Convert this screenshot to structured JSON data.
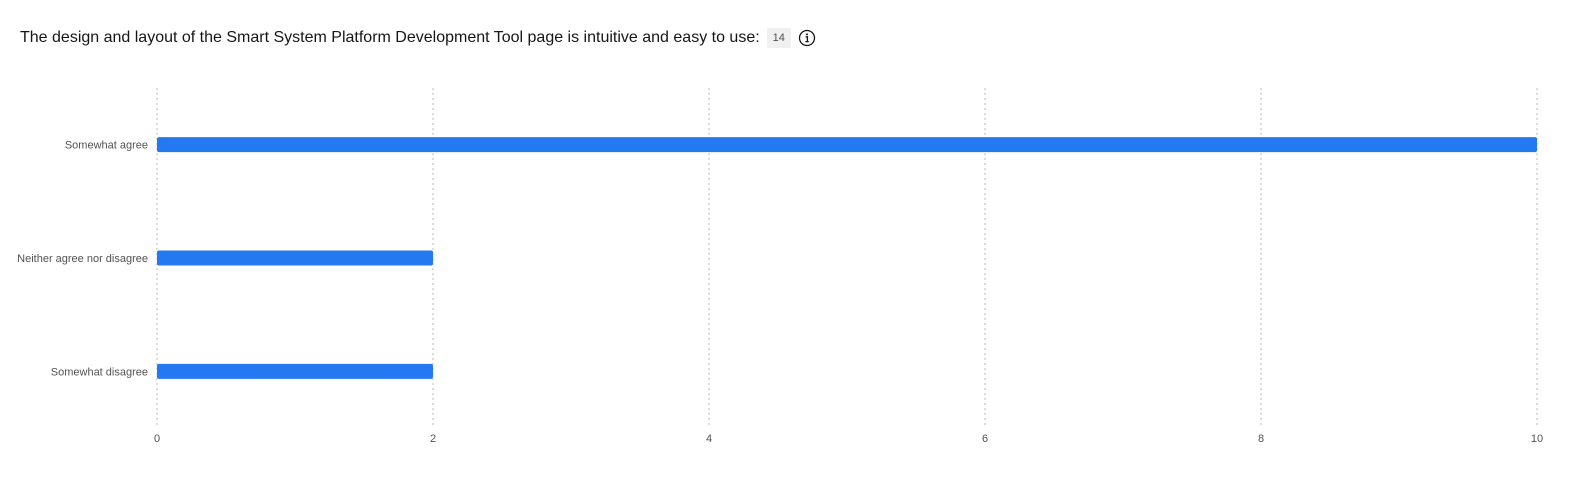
{
  "chart_data": {
    "type": "bar",
    "orientation": "horizontal",
    "title": "The design and layout of the Smart System Platform Development Tool page is intuitive and easy to use:",
    "response_count": "14",
    "categories": [
      "Somewhat agree",
      "Neither agree nor disagree",
      "Somewhat disagree"
    ],
    "values": [
      10,
      2,
      2
    ],
    "xlim": [
      0,
      10
    ],
    "xticks": [
      0,
      2,
      4,
      6,
      8,
      10
    ],
    "xlabel": "",
    "ylabel": "",
    "grid": "vertical dotted",
    "bar_color": "#2479f0"
  },
  "icons": {
    "info": "info-icon"
  }
}
